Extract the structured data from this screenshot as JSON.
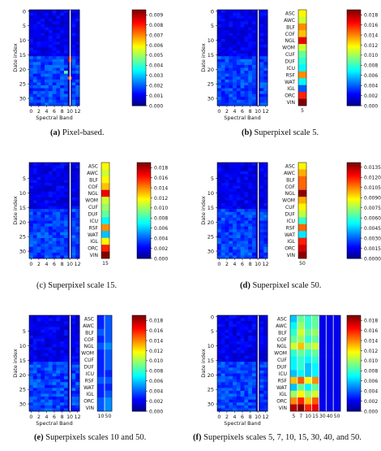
{
  "colors": {
    "jet": [
      "#00007f",
      "#0000ff",
      "#007fff",
      "#00ffff",
      "#7fff7f",
      "#ffff00",
      "#ff7f00",
      "#ff0000",
      "#7f0000"
    ],
    "separator": "#ffffff"
  },
  "chart_data": [
    {
      "type": "heatmap",
      "caption_label": "(a)",
      "caption_text": "Pixel-based.",
      "xlabel": "Spectral Band",
      "ylabel": "Date index",
      "x_ticks": [
        "0",
        "2",
        "4",
        "6",
        "8",
        "10",
        "12"
      ],
      "y_ticks": [
        "0",
        "5",
        "10",
        "15",
        "20",
        "25",
        "30"
      ],
      "rows": 33,
      "cols": 13,
      "colorbar_ticks": [
        "0.009",
        "0.008",
        "0.007",
        "0.006",
        "0.005",
        "0.004",
        "0.003",
        "0.002",
        "0.001",
        "0.000"
      ],
      "colorbar_max": 0.0095,
      "hotspots": [
        {
          "row": 16,
          "col": 10,
          "value": 0.0092
        },
        {
          "row": 17,
          "col": 10,
          "value": 0.009
        },
        {
          "row": 23,
          "col": 10,
          "value": 0.0075
        },
        {
          "row": 21,
          "col": 9,
          "value": 0.0045
        }
      ],
      "superpixel_scales": [],
      "class_labels": []
    },
    {
      "type": "heatmap",
      "caption_label": "(b)",
      "caption_text": "Superpixel scale 5.",
      "xlabel": "Spectral Band",
      "ylabel": "Date index",
      "x_ticks": [
        "0",
        "2",
        "4",
        "6",
        "8",
        "10",
        "12"
      ],
      "y_ticks": [
        "0",
        "5",
        "10",
        "15",
        "20",
        "25",
        "30"
      ],
      "rows": 33,
      "cols": 13,
      "colorbar_ticks": [
        "0.018",
        "0.016",
        "0.014",
        "0.012",
        "0.010",
        "0.008",
        "0.006",
        "0.004",
        "0.002",
        "0.000"
      ],
      "colorbar_max": 0.019,
      "superpixel_scales": [
        "5"
      ],
      "class_labels": [
        "ASC",
        "AWC",
        "BLF",
        "COF",
        "NGL",
        "WOM",
        "CUF",
        "DUF",
        "ICU",
        "RSF",
        "WAT",
        "IGL",
        "ORC",
        "VIN"
      ],
      "class_values": [
        [
          0.012
        ],
        [
          0.011
        ],
        [
          0.014
        ],
        [
          0.013
        ],
        [
          0.017
        ],
        [
          0.011
        ],
        [
          0.009
        ],
        [
          0.008
        ],
        [
          0.007
        ],
        [
          0.014
        ],
        [
          0.007
        ],
        [
          0.004
        ],
        [
          0.016
        ],
        [
          0.019
        ]
      ]
    },
    {
      "type": "heatmap",
      "caption_label": "(c)",
      "caption_text": "Superpixel scale 15.",
      "xlabel": "",
      "ylabel": "Date index",
      "x_ticks": [
        "0",
        "2",
        "4",
        "6",
        "8",
        "10",
        "12"
      ],
      "y_ticks": [
        "5",
        "10",
        "15",
        "20",
        "25",
        "30"
      ],
      "rows": 33,
      "cols": 13,
      "colorbar_ticks": [
        "0.018",
        "0.016",
        "0.014",
        "0.012",
        "0.010",
        "0.008",
        "0.006",
        "0.004",
        "0.002",
        "0.000"
      ],
      "colorbar_max": 0.019,
      "superpixel_scales": [
        "15"
      ],
      "class_labels": [
        "ASC",
        "AWC",
        "BLF",
        "COF",
        "NGL",
        "WOM",
        "CUF",
        "DUF",
        "ICU",
        "RSF",
        "WAT",
        "IGL",
        "ORC",
        "VIN"
      ],
      "class_values": [
        [
          0.012
        ],
        [
          0.011
        ],
        [
          0.012
        ],
        [
          0.013
        ],
        [
          0.017
        ],
        [
          0.011
        ],
        [
          0.01
        ],
        [
          0.009
        ],
        [
          0.007
        ],
        [
          0.014
        ],
        [
          0.006
        ],
        [
          0.012
        ],
        [
          0.016
        ],
        [
          0.019
        ]
      ]
    },
    {
      "type": "heatmap",
      "caption_label": "(d)",
      "caption_text": "Superpixel scale 50.",
      "xlabel": "",
      "ylabel": "Date index",
      "x_ticks": [
        "0",
        "2",
        "4",
        "6",
        "8",
        "10",
        "12"
      ],
      "y_ticks": [
        "5",
        "10",
        "15",
        "20",
        "25",
        "30"
      ],
      "rows": 33,
      "cols": 13,
      "colorbar_ticks": [
        "0.0135",
        "0.0120",
        "0.0105",
        "0.0090",
        "0.0075",
        "0.0060",
        "0.0045",
        "0.0030",
        "0.0015",
        "0.0000"
      ],
      "colorbar_max": 0.0142,
      "superpixel_scales": [
        "50"
      ],
      "class_labels": [
        "ASC",
        "AWC",
        "BLF",
        "COF",
        "NGL",
        "WOM",
        "CUF",
        "DUF",
        "ICU",
        "RSF",
        "WAT",
        "IGL",
        "ORC",
        "VIN"
      ],
      "class_values": [
        [
          0.009
        ],
        [
          0.01
        ],
        [
          0.011
        ],
        [
          0.011
        ],
        [
          0.014
        ],
        [
          0.01
        ],
        [
          0.009
        ],
        [
          0.008
        ],
        [
          0.006
        ],
        [
          0.011
        ],
        [
          0.005
        ],
        [
          0.012
        ],
        [
          0.013
        ],
        [
          0.014
        ]
      ]
    },
    {
      "type": "heatmap",
      "caption_label": "(e)",
      "caption_text": "Superpixels scales 10 and 50.",
      "xlabel": "Spectral Band",
      "ylabel": "Date index",
      "x_ticks": [
        "0",
        "2",
        "4",
        "6",
        "8",
        "10",
        "12"
      ],
      "y_ticks": [
        "5",
        "10",
        "15",
        "20",
        "25",
        "30"
      ],
      "rows": 33,
      "cols": 13,
      "colorbar_ticks": [
        "0.018",
        "0.016",
        "0.014",
        "0.012",
        "0.010",
        "0.008",
        "0.006",
        "0.004",
        "0.002",
        "0.000"
      ],
      "colorbar_max": 0.019,
      "superpixel_scales": [
        "10",
        "50"
      ],
      "class_labels": [
        "ASC",
        "AWC",
        "BLF",
        "COF",
        "NGL",
        "WOM",
        "CUF",
        "DUF",
        "ICU",
        "RSF",
        "WAT",
        "IGL",
        "ORC",
        "VIN"
      ],
      "class_values": [
        [
          0.003,
          0.004
        ],
        [
          0.003,
          0.004
        ],
        [
          0.004,
          0.004
        ],
        [
          0.003,
          0.004
        ],
        [
          0.004,
          0.005
        ],
        [
          0.003,
          0.004
        ],
        [
          0.003,
          0.004
        ],
        [
          0.003,
          0.004
        ],
        [
          0.003,
          0.003
        ],
        [
          0.004,
          0.004
        ],
        [
          0.003,
          0.003
        ],
        [
          0.003,
          0.004
        ],
        [
          0.004,
          0.005
        ],
        [
          0.004,
          0.005
        ]
      ]
    },
    {
      "type": "heatmap",
      "caption_label": "(f)",
      "caption_text": "Superpixels scales 5, 7, 10, 15, 30, 40, and 50.",
      "xlabel": "Spectral Band",
      "ylabel": "Date index",
      "x_ticks": [
        "0",
        "2",
        "4",
        "6",
        "8",
        "10",
        "12"
      ],
      "y_ticks": [
        "0",
        "5",
        "10",
        "15",
        "20",
        "25",
        "30"
      ],
      "rows": 33,
      "cols": 13,
      "colorbar_ticks": [
        "0.018",
        "0.016",
        "0.014",
        "0.012",
        "0.010",
        "0.008",
        "0.006",
        "0.004",
        "0.002",
        "0.000"
      ],
      "colorbar_max": 0.019,
      "superpixel_scales": [
        "5",
        "7",
        "10",
        "15",
        "30",
        "40",
        "50"
      ],
      "class_labels": [
        "ASC",
        "AWC",
        "BLF",
        "COF",
        "NGL",
        "WOM",
        "CUF",
        "DUF",
        "ICU",
        "RSF",
        "WAT",
        "IGL",
        "ORC",
        "VIN"
      ],
      "class_values": [
        [
          0.006,
          0.009,
          0.008,
          0.009,
          0.002,
          0.002,
          0.002
        ],
        [
          0.007,
          0.01,
          0.008,
          0.009,
          0.002,
          0.002,
          0.002
        ],
        [
          0.008,
          0.011,
          0.009,
          0.01,
          0.002,
          0.002,
          0.002
        ],
        [
          0.009,
          0.01,
          0.008,
          0.009,
          0.002,
          0.002,
          0.002
        ],
        [
          0.011,
          0.013,
          0.01,
          0.011,
          0.002,
          0.002,
          0.002
        ],
        [
          0.008,
          0.009,
          0.008,
          0.009,
          0.002,
          0.002,
          0.002
        ],
        [
          0.007,
          0.008,
          0.007,
          0.008,
          0.002,
          0.002,
          0.002
        ],
        [
          0.007,
          0.008,
          0.006,
          0.007,
          0.002,
          0.002,
          0.002
        ],
        [
          0.006,
          0.007,
          0.006,
          0.007,
          0.002,
          0.002,
          0.002
        ],
        [
          0.013,
          0.015,
          0.012,
          0.014,
          0.002,
          0.002,
          0.002
        ],
        [
          0.006,
          0.009,
          0.007,
          0.009,
          0.002,
          0.002,
          0.002
        ],
        [
          0.01,
          0.012,
          0.01,
          0.011,
          0.002,
          0.002,
          0.002
        ],
        [
          0.014,
          0.016,
          0.013,
          0.015,
          0.002,
          0.002,
          0.002
        ],
        [
          0.018,
          0.019,
          0.016,
          0.017,
          0.002,
          0.002,
          0.002
        ]
      ]
    }
  ]
}
